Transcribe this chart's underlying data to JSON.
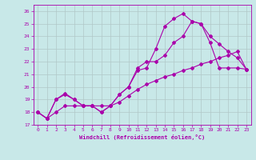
{
  "xlabel": "Windchill (Refroidissement éolien,°C)",
  "xlim": [
    -0.5,
    23.5
  ],
  "ylim": [
    17,
    26.5
  ],
  "yticks": [
    17,
    18,
    19,
    20,
    21,
    22,
    23,
    24,
    25,
    26
  ],
  "xticks": [
    0,
    1,
    2,
    3,
    4,
    5,
    6,
    7,
    8,
    9,
    10,
    11,
    12,
    13,
    14,
    15,
    16,
    17,
    18,
    19,
    20,
    21,
    22,
    23
  ],
  "bg_color": "#c8e8e8",
  "grid_color": "#b0c8c8",
  "line_color": "#aa00aa",
  "line1_x": [
    0,
    1,
    2,
    3,
    4,
    5,
    6,
    7,
    8,
    9,
    10,
    11,
    12,
    13,
    14,
    15,
    16,
    17,
    18,
    19,
    20,
    21,
    22,
    23
  ],
  "line1_y": [
    18.0,
    17.5,
    19.0,
    19.5,
    19.0,
    18.5,
    18.5,
    18.0,
    18.5,
    19.4,
    20.0,
    21.3,
    21.5,
    23.0,
    24.8,
    25.4,
    25.8,
    25.2,
    25.0,
    24.0,
    23.4,
    22.8,
    22.3,
    21.4
  ],
  "line2_x": [
    0,
    1,
    2,
    3,
    4,
    5,
    6,
    7,
    8,
    9,
    10,
    11,
    12,
    13,
    14,
    15,
    16,
    17,
    18,
    19,
    20,
    21,
    22,
    23
  ],
  "line2_y": [
    18.0,
    17.5,
    19.0,
    19.4,
    19.0,
    18.5,
    18.5,
    18.0,
    18.5,
    19.4,
    20.0,
    21.5,
    22.0,
    22.0,
    22.5,
    23.5,
    24.0,
    25.2,
    25.0,
    23.5,
    21.5,
    21.5,
    21.5,
    21.4
  ],
  "line3_x": [
    0,
    1,
    2,
    3,
    4,
    5,
    6,
    7,
    8,
    9,
    10,
    11,
    12,
    13,
    14,
    15,
    16,
    17,
    18,
    19,
    20,
    21,
    22,
    23
  ],
  "line3_y": [
    18.0,
    17.5,
    18.0,
    18.5,
    18.5,
    18.5,
    18.5,
    18.5,
    18.5,
    18.8,
    19.3,
    19.8,
    20.2,
    20.5,
    20.8,
    21.0,
    21.3,
    21.5,
    21.8,
    22.0,
    22.3,
    22.5,
    22.8,
    21.4
  ]
}
